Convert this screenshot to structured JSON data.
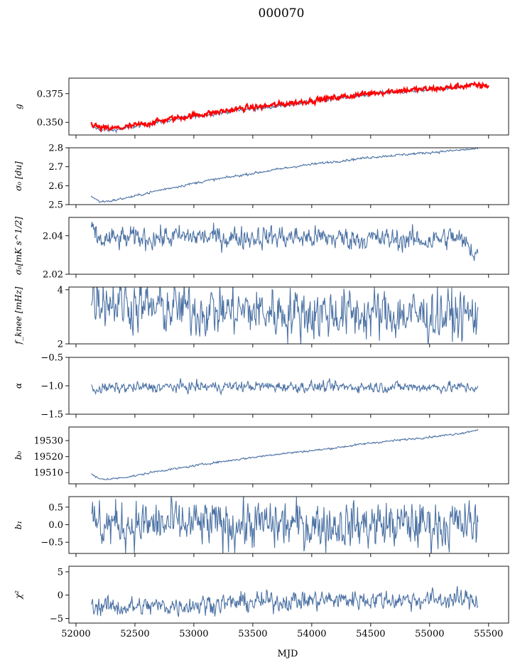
{
  "figure": {
    "title": "000070",
    "xlabel": "MJD"
  },
  "chart_data": {
    "type": "line",
    "title": "000070",
    "xlabel": "MJD",
    "xlim": [
      51940,
      55670
    ],
    "xticks": [
      52000,
      52500,
      53000,
      53500,
      54000,
      54500,
      55000,
      55500
    ],
    "x_range": [
      52130,
      55410
    ],
    "colors": {
      "series": "#4c72a4",
      "overlay": "#ff0000"
    },
    "panels": [
      {
        "ylabel": "g",
        "ylim": [
          0.339,
          0.3885
        ],
        "yticks": [
          0.35,
          0.375
        ],
        "yticklabels": [
          "0.350",
          "0.375"
        ],
        "series": [
          {
            "x": [
              52130,
              52200,
              52300,
              52400,
              52600,
              52800,
              53000,
              53200,
              53400,
              53600,
              53800,
              54000,
              54200,
              54400,
              54600,
              54800,
              55000,
              55200,
              55300,
              55410
            ],
            "values": [
              0.347,
              0.3435,
              0.343,
              0.3445,
              0.348,
              0.352,
              0.355,
              0.358,
              0.361,
              0.3625,
              0.3655,
              0.368,
              0.371,
              0.373,
              0.376,
              0.377,
              0.3785,
              0.38,
              0.3815,
              0.3825
            ],
            "noise": 0.0008
          },
          {
            "x": [
              52130,
              52200,
              52300,
              52400,
              52600,
              52800,
              53000,
              53200,
              53400,
              53600,
              53800,
              54000,
              54200,
              54400,
              54600,
              54800,
              55000,
              55200,
              55300,
              55500
            ],
            "values": [
              0.349,
              0.345,
              0.3445,
              0.3455,
              0.349,
              0.353,
              0.356,
              0.359,
              0.362,
              0.364,
              0.3665,
              0.369,
              0.3715,
              0.374,
              0.3765,
              0.378,
              0.379,
              0.3805,
              0.382,
              0.382
            ],
            "noise": 0.0012,
            "color": "overlay"
          }
        ]
      },
      {
        "ylabel": "σ₀ [du]",
        "ylim": [
          2.5,
          2.8
        ],
        "yticks": [
          2.5,
          2.6,
          2.7,
          2.8
        ],
        "yticklabels": [
          "2.5",
          "2.6",
          "2.7",
          "2.8"
        ],
        "series": [
          {
            "x": [
              52130,
              52200,
              52300,
              52500,
              52700,
              52900,
              53100,
              53300,
              53500,
              53700,
              53900,
              54100,
              54300,
              54500,
              54700,
              54900,
              55100,
              55300,
              55410
            ],
            "values": [
              2.545,
              2.515,
              2.52,
              2.545,
              2.575,
              2.6,
              2.625,
              2.645,
              2.665,
              2.685,
              2.705,
              2.72,
              2.735,
              2.75,
              2.76,
              2.77,
              2.78,
              2.79,
              2.795
            ],
            "noise": 0.003
          }
        ]
      },
      {
        "ylabel": "σ₀[mK s^1/2]",
        "ylim": [
          2.02,
          2.0495
        ],
        "yticks": [
          2.02,
          2.04
        ],
        "yticklabels": [
          "2.02",
          "2.04"
        ],
        "series": [
          {
            "x": [
              52130,
              52200,
              52400,
              52700,
              53000,
              53300,
              53600,
              54000,
              54400,
              54800,
              55000,
              55200,
              55300,
              55410
            ],
            "values": [
              2.043,
              2.0375,
              2.0385,
              2.039,
              2.0395,
              2.039,
              2.0395,
              2.039,
              2.0385,
              2.038,
              2.0375,
              2.0395,
              2.036,
              2.0305
            ],
            "noise": 0.0028
          }
        ]
      },
      {
        "ylabel": "f_knee [mHz]",
        "ylim": [
          2,
          4.1
        ],
        "yticks": [
          2,
          4
        ],
        "yticklabels": [
          "2",
          "4"
        ],
        "series": [
          {
            "x": [
              52130,
              52300,
              52600,
              53000,
              53500,
              54000,
              54500,
              55000,
              55410
            ],
            "values": [
              3.8,
              3.6,
              3.35,
              3.25,
              3.2,
              3.15,
              3.1,
              3.05,
              3.05
            ],
            "noise": 0.45
          }
        ]
      },
      {
        "ylabel": "α",
        "ylim": [
          -1.5,
          -0.5
        ],
        "yticks": [
          -1.5,
          -1.0,
          -0.5
        ],
        "yticklabels": [
          "−1.5",
          "−1.0",
          "−0.5"
        ],
        "series": [
          {
            "x": [
              52130,
              52300,
              52800,
              53500,
              54200,
              54900,
              55410
            ],
            "values": [
              -1.06,
              -1.04,
              -1.02,
              -1.01,
              -1.02,
              -1.02,
              -1.03
            ],
            "noise": 0.045
          }
        ]
      },
      {
        "ylabel": "b₀",
        "ylim": [
          19503,
          19538.5
        ],
        "yticks": [
          19510,
          19520,
          19530
        ],
        "yticklabels": [
          "19510",
          "19520",
          "19530"
        ],
        "series": [
          {
            "x": [
              52130,
              52200,
              52300,
              52500,
              52700,
              52900,
              53100,
              53300,
              53500,
              53700,
              53900,
              54100,
              54300,
              54500,
              54700,
              54900,
              55100,
              55300,
              55410
            ],
            "values": [
              19509,
              19506,
              19506,
              19508,
              19511,
              19513,
              19515.5,
              19517.5,
              19519.5,
              19521.5,
              19523,
              19524.5,
              19526.5,
              19528.5,
              19530,
              19531.5,
              19533,
              19535,
              19537
            ],
            "noise": 0.3
          }
        ]
      },
      {
        "ylabel": "b₁",
        "ylim": [
          -0.82,
          0.8
        ],
        "yticks": [
          -0.5,
          0.0,
          0.5
        ],
        "yticklabels": [
          "−0.5",
          "0.0",
          "0.5"
        ],
        "series": [
          {
            "x": [
              52130,
              53000,
              54000,
              55000,
              55410
            ],
            "values": [
              0.0,
              0.0,
              0.0,
              0.0,
              0.0
            ],
            "noise": 0.32
          }
        ]
      },
      {
        "ylabel": "χ²",
        "ylim": [
          -6,
          6.2
        ],
        "yticks": [
          -5,
          0,
          5
        ],
        "yticklabels": [
          "−5",
          "0",
          "5"
        ],
        "series": [
          {
            "x": [
              52130,
              52400,
              52800,
              53200,
              53600,
              54000,
              54400,
              54800,
              55200,
              55410
            ],
            "values": [
              -2.2,
              -2.6,
              -2.3,
              -1.8,
              -1.4,
              -1.1,
              -0.9,
              -1.0,
              -0.9,
              -1.1
            ],
            "noise": 1.0
          }
        ]
      }
    ]
  }
}
